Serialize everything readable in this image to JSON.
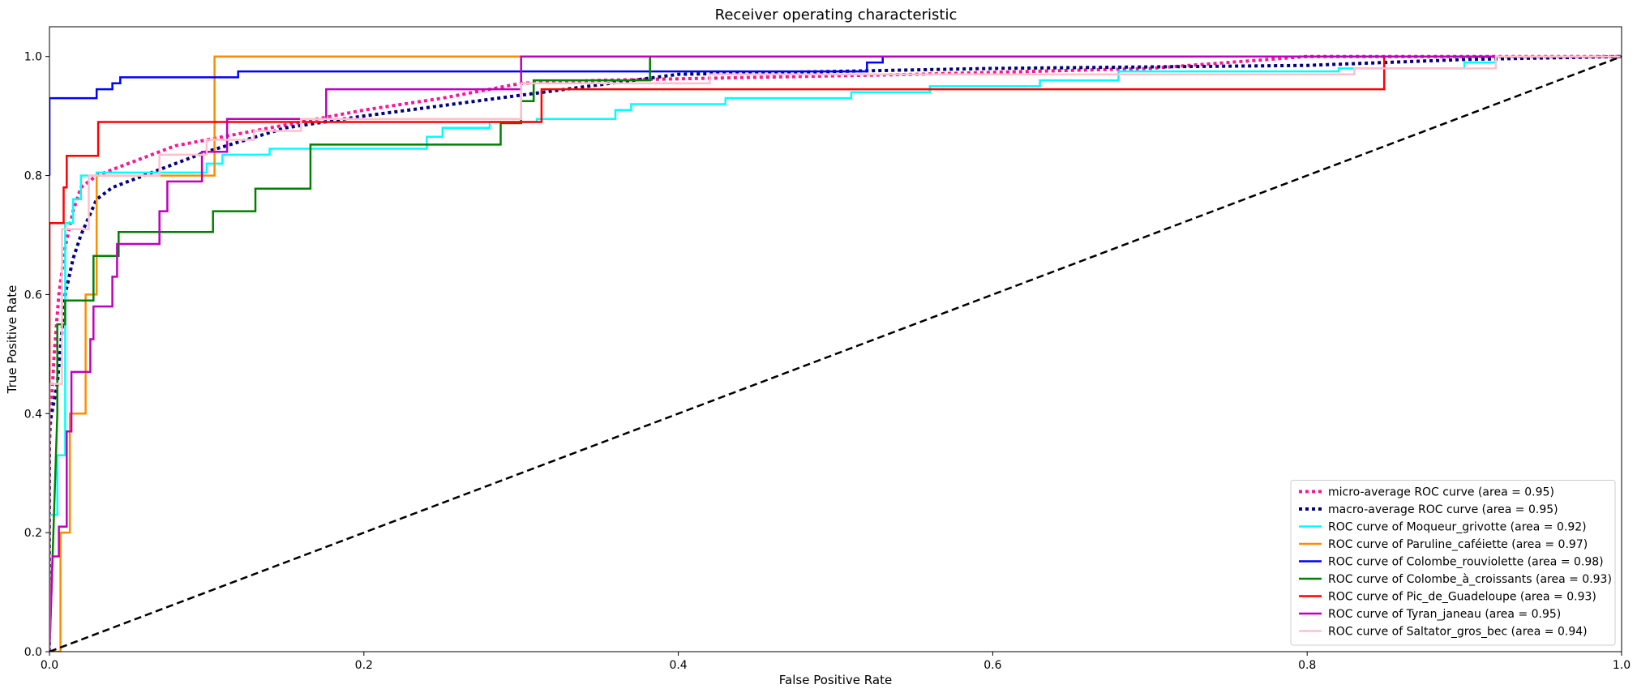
{
  "chart_data": {
    "type": "line",
    "title": "Receiver operating characteristic",
    "xlabel": "False Positive Rate",
    "ylabel": "True Positive Rate",
    "xlim": [
      0.0,
      1.0
    ],
    "ylim": [
      0.0,
      1.05
    ],
    "xticks": [
      "0.0",
      "0.2",
      "0.4",
      "0.6",
      "0.8",
      "1.0"
    ],
    "yticks": [
      "0.0",
      "0.2",
      "0.4",
      "0.6",
      "0.8",
      "1.0"
    ],
    "grid": false,
    "legend_position": "lower right",
    "series": [
      {
        "name": "micro-average ROC curve (area = 0.95)",
        "color": "#ff1493",
        "style": "dotted",
        "width": 4,
        "points": [
          [
            0.0,
            0.0
          ],
          [
            0.0,
            0.35
          ],
          [
            0.003,
            0.5
          ],
          [
            0.006,
            0.6
          ],
          [
            0.01,
            0.68
          ],
          [
            0.015,
            0.74
          ],
          [
            0.02,
            0.78
          ],
          [
            0.03,
            0.8
          ],
          [
            0.05,
            0.82
          ],
          [
            0.08,
            0.85
          ],
          [
            0.12,
            0.87
          ],
          [
            0.16,
            0.89
          ],
          [
            0.2,
            0.91
          ],
          [
            0.25,
            0.93
          ],
          [
            0.3,
            0.955
          ],
          [
            0.35,
            0.96
          ],
          [
            0.45,
            0.965
          ],
          [
            0.55,
            0.97
          ],
          [
            0.7,
            0.98
          ],
          [
            0.8,
            1.0
          ],
          [
            1.0,
            1.0
          ]
        ]
      },
      {
        "name": "macro-average ROC curve (area = 0.95)",
        "color": "#000080",
        "style": "dotted",
        "width": 4,
        "points": [
          [
            0.0,
            0.0
          ],
          [
            0.0,
            0.38
          ],
          [
            0.005,
            0.45
          ],
          [
            0.01,
            0.6
          ],
          [
            0.015,
            0.66
          ],
          [
            0.02,
            0.7
          ],
          [
            0.03,
            0.76
          ],
          [
            0.04,
            0.78
          ],
          [
            0.06,
            0.8
          ],
          [
            0.1,
            0.84
          ],
          [
            0.15,
            0.88
          ],
          [
            0.2,
            0.9
          ],
          [
            0.3,
            0.935
          ],
          [
            0.4,
            0.97
          ],
          [
            0.5,
            0.975
          ],
          [
            0.6,
            0.98
          ],
          [
            0.8,
            0.985
          ],
          [
            0.9,
            0.995
          ],
          [
            1.0,
            1.0
          ]
        ]
      },
      {
        "name": "ROC curve of Moqueur_grivotte (area = 0.92)",
        "color": "#00ffff",
        "style": "solid",
        "width": 2.5,
        "points": [
          [
            0.0,
            0.0
          ],
          [
            0.0,
            0.23
          ],
          [
            0.005,
            0.23
          ],
          [
            0.005,
            0.33
          ],
          [
            0.01,
            0.33
          ],
          [
            0.01,
            0.72
          ],
          [
            0.015,
            0.72
          ],
          [
            0.015,
            0.76
          ],
          [
            0.02,
            0.76
          ],
          [
            0.02,
            0.8
          ],
          [
            0.03,
            0.8
          ],
          [
            0.03,
            0.805
          ],
          [
            0.1,
            0.805
          ],
          [
            0.1,
            0.82
          ],
          [
            0.11,
            0.82
          ],
          [
            0.11,
            0.835
          ],
          [
            0.14,
            0.835
          ],
          [
            0.14,
            0.845
          ],
          [
            0.24,
            0.845
          ],
          [
            0.24,
            0.865
          ],
          [
            0.25,
            0.865
          ],
          [
            0.25,
            0.88
          ],
          [
            0.28,
            0.88
          ],
          [
            0.28,
            0.89
          ],
          [
            0.31,
            0.89
          ],
          [
            0.31,
            0.895
          ],
          [
            0.36,
            0.895
          ],
          [
            0.36,
            0.91
          ],
          [
            0.37,
            0.91
          ],
          [
            0.37,
            0.92
          ],
          [
            0.43,
            0.92
          ],
          [
            0.43,
            0.93
          ],
          [
            0.51,
            0.93
          ],
          [
            0.51,
            0.94
          ],
          [
            0.56,
            0.94
          ],
          [
            0.56,
            0.95
          ],
          [
            0.63,
            0.95
          ],
          [
            0.63,
            0.96
          ],
          [
            0.68,
            0.96
          ],
          [
            0.68,
            0.975
          ],
          [
            0.82,
            0.975
          ],
          [
            0.82,
            0.98
          ],
          [
            0.9,
            0.98
          ],
          [
            0.9,
            0.99
          ],
          [
            0.92,
            0.99
          ],
          [
            0.92,
            1.0
          ],
          [
            1.0,
            1.0
          ]
        ]
      },
      {
        "name": "ROC curve of Paruline_caféiette (area = 0.97)",
        "color": "#ff8c00",
        "style": "solid",
        "width": 2.5,
        "points": [
          [
            0.0,
            0.0
          ],
          [
            0.007,
            0.0
          ],
          [
            0.007,
            0.2
          ],
          [
            0.013,
            0.2
          ],
          [
            0.013,
            0.4
          ],
          [
            0.023,
            0.4
          ],
          [
            0.023,
            0.6
          ],
          [
            0.03,
            0.6
          ],
          [
            0.03,
            0.8
          ],
          [
            0.105,
            0.8
          ],
          [
            0.105,
            1.0
          ],
          [
            1.0,
            1.0
          ]
        ]
      },
      {
        "name": "ROC curve of Colombe_rouviolette (area = 0.98)",
        "color": "#0000ff",
        "style": "solid",
        "width": 2.5,
        "points": [
          [
            0.0,
            0.8
          ],
          [
            0.0,
            0.93
          ],
          [
            0.03,
            0.93
          ],
          [
            0.03,
            0.945
          ],
          [
            0.04,
            0.945
          ],
          [
            0.04,
            0.955
          ],
          [
            0.045,
            0.955
          ],
          [
            0.045,
            0.965
          ],
          [
            0.12,
            0.965
          ],
          [
            0.12,
            0.975
          ],
          [
            0.52,
            0.975
          ],
          [
            0.52,
            0.99
          ],
          [
            0.53,
            0.99
          ],
          [
            0.53,
            1.0
          ],
          [
            1.0,
            1.0
          ]
        ]
      },
      {
        "name": "ROC curve of Colombe_à_croissants (area = 0.93)",
        "color": "#008000",
        "style": "solid",
        "width": 2.5,
        "points": [
          [
            0.0,
            0.0
          ],
          [
            0.005,
            0.4
          ],
          [
            0.005,
            0.55
          ],
          [
            0.01,
            0.55
          ],
          [
            0.01,
            0.59
          ],
          [
            0.028,
            0.59
          ],
          [
            0.028,
            0.665
          ],
          [
            0.044,
            0.665
          ],
          [
            0.044,
            0.705
          ],
          [
            0.104,
            0.705
          ],
          [
            0.104,
            0.74
          ],
          [
            0.131,
            0.74
          ],
          [
            0.131,
            0.778
          ],
          [
            0.166,
            0.778
          ],
          [
            0.166,
            0.852
          ],
          [
            0.287,
            0.852
          ],
          [
            0.287,
            0.888
          ],
          [
            0.3,
            0.888
          ],
          [
            0.3,
            0.925
          ],
          [
            0.308,
            0.925
          ],
          [
            0.308,
            0.96
          ],
          [
            0.382,
            0.96
          ],
          [
            0.382,
            1.0
          ],
          [
            1.0,
            1.0
          ]
        ]
      },
      {
        "name": "ROC curve of Pic_de_Guadeloupe (area = 0.93)",
        "color": "#ff0000",
        "style": "solid",
        "width": 2.5,
        "points": [
          [
            0.0,
            0.0
          ],
          [
            0.0,
            0.72
          ],
          [
            0.009,
            0.72
          ],
          [
            0.009,
            0.78
          ],
          [
            0.011,
            0.78
          ],
          [
            0.011,
            0.833
          ],
          [
            0.031,
            0.833
          ],
          [
            0.031,
            0.89
          ],
          [
            0.313,
            0.89
          ],
          [
            0.313,
            0.945
          ],
          [
            0.849,
            0.945
          ],
          [
            0.849,
            1.0
          ],
          [
            1.0,
            1.0
          ]
        ]
      },
      {
        "name": "ROC curve of Tyran_janeau (area = 0.95)",
        "color": "#bf00bf",
        "style": "solid",
        "width": 2.5,
        "points": [
          [
            0.0,
            0.0
          ],
          [
            0.002,
            0.16
          ],
          [
            0.006,
            0.16
          ],
          [
            0.006,
            0.21
          ],
          [
            0.011,
            0.21
          ],
          [
            0.011,
            0.37
          ],
          [
            0.014,
            0.37
          ],
          [
            0.014,
            0.47
          ],
          [
            0.026,
            0.47
          ],
          [
            0.026,
            0.525
          ],
          [
            0.028,
            0.525
          ],
          [
            0.028,
            0.58
          ],
          [
            0.04,
            0.58
          ],
          [
            0.04,
            0.63
          ],
          [
            0.043,
            0.63
          ],
          [
            0.043,
            0.685
          ],
          [
            0.07,
            0.685
          ],
          [
            0.07,
            0.74
          ],
          [
            0.075,
            0.74
          ],
          [
            0.075,
            0.79
          ],
          [
            0.097,
            0.79
          ],
          [
            0.097,
            0.84
          ],
          [
            0.113,
            0.84
          ],
          [
            0.113,
            0.895
          ],
          [
            0.176,
            0.895
          ],
          [
            0.176,
            0.945
          ],
          [
            0.3,
            0.945
          ],
          [
            0.3,
            1.0
          ],
          [
            1.0,
            1.0
          ]
        ]
      },
      {
        "name": "ROC curve of Saltator_gros_bec (area = 0.94)",
        "color": "#ffc0cb",
        "style": "solid",
        "width": 2.5,
        "points": [
          [
            0.0,
            0.0
          ],
          [
            0.0,
            0.45
          ],
          [
            0.008,
            0.45
          ],
          [
            0.008,
            0.71
          ],
          [
            0.025,
            0.71
          ],
          [
            0.025,
            0.8
          ],
          [
            0.07,
            0.8
          ],
          [
            0.07,
            0.835
          ],
          [
            0.1,
            0.835
          ],
          [
            0.1,
            0.86
          ],
          [
            0.13,
            0.86
          ],
          [
            0.13,
            0.875
          ],
          [
            0.16,
            0.875
          ],
          [
            0.16,
            0.895
          ],
          [
            0.3,
            0.895
          ],
          [
            0.3,
            0.955
          ],
          [
            0.42,
            0.955
          ],
          [
            0.42,
            0.97
          ],
          [
            0.83,
            0.97
          ],
          [
            0.83,
            0.98
          ],
          [
            0.92,
            0.98
          ],
          [
            0.92,
            1.0
          ],
          [
            1.0,
            1.0
          ]
        ]
      },
      {
        "name": "",
        "color": "#000000",
        "style": "dashed",
        "width": 2.5,
        "legend": false,
        "points": [
          [
            0.0,
            0.0
          ],
          [
            1.0,
            1.0
          ]
        ]
      }
    ]
  }
}
